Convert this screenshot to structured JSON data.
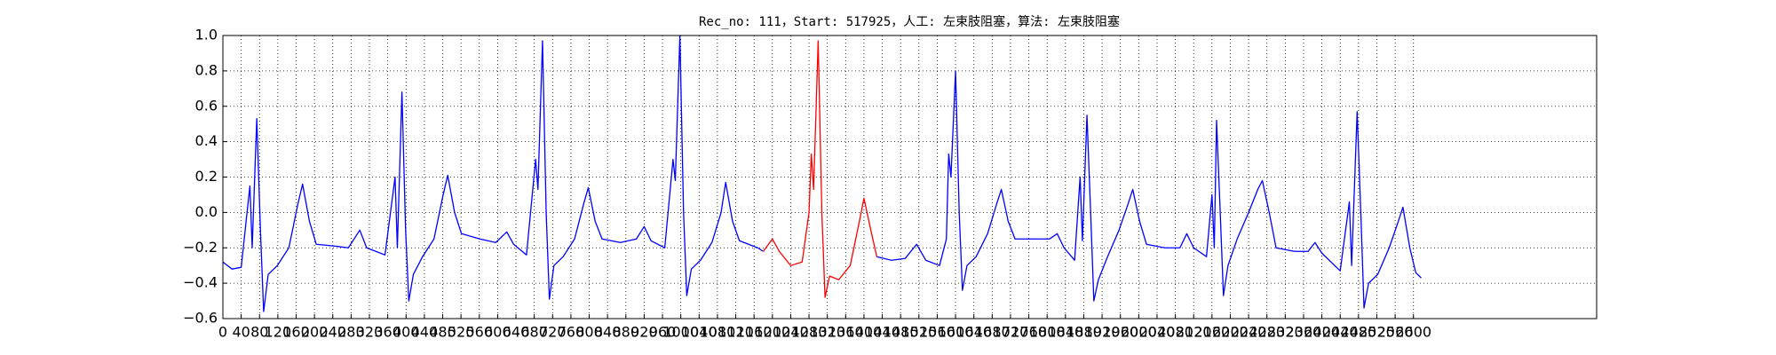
{
  "chart_data": {
    "type": "line",
    "title": "Rec_no: 111，Start: 517925，人工: 左束肢阻塞，算法: 左束肢阻塞",
    "xlim": [
      0,
      3000
    ],
    "ylim": [
      -0.6,
      1.0
    ],
    "xticks": [
      0,
      40,
      80,
      120,
      160,
      200,
      240,
      280,
      320,
      360,
      400,
      440,
      480,
      520,
      560,
      600,
      640,
      680,
      720,
      760,
      800,
      840,
      880,
      920,
      960,
      1000,
      1040,
      1080,
      1120,
      1160,
      1200,
      1240,
      1280,
      1320,
      1360,
      1400,
      1440,
      1480,
      1520,
      1560,
      1600,
      1640,
      1680,
      1720,
      1760,
      1800,
      1840,
      1880,
      1920,
      1960,
      2000,
      2040,
      2080,
      2120,
      2160,
      2200,
      2240,
      2280,
      2320,
      2360,
      2400,
      2440,
      2480,
      2520,
      2560,
      2600
    ],
    "yticks": [
      {
        "value": -0.6,
        "label": "−0.6"
      },
      {
        "value": -0.4,
        "label": "−0.4"
      },
      {
        "value": -0.2,
        "label": "−0.2"
      },
      {
        "value": 0,
        "label": "0.0"
      },
      0.2,
      0.4,
      0.6,
      0.8,
      {
        "value": 1,
        "label": "1.0"
      }
    ],
    "grid": true,
    "series": [
      {
        "color": "#0000ff",
        "x": [
          0,
          20,
          40,
          59,
          64,
          74,
          82,
          89,
          99,
          119,
          144,
          164,
          174,
          189,
          204,
          244,
          274,
          299,
          314,
          354,
          376,
          381,
          391,
          399,
          406,
          416,
          436,
          461,
          481,
          491,
          506,
          521,
          561,
          596,
          620,
          635,
          663,
          683,
          688,
          698,
          706,
          713,
          723,
          743,
          768,
          788,
          798,
          813,
          828,
          868,
          903,
          920,
          935,
          965,
          983,
          988,
          998,
          1006,
          1013,
          1023,
          1043,
          1068,
          1088,
          1098,
          1113,
          1128,
          1168,
          1180
        ],
        "values": [
          -0.28,
          -0.32,
          -0.31,
          0.15,
          -0.2,
          0.53,
          -0.1,
          -0.56,
          -0.35,
          -0.3,
          -0.2,
          0.05,
          0.16,
          -0.05,
          -0.18,
          -0.19,
          -0.2,
          -0.1,
          -0.2,
          -0.24,
          0.2,
          -0.2,
          0.68,
          -0.1,
          -0.5,
          -0.35,
          -0.25,
          -0.15,
          0.1,
          0.21,
          0.0,
          -0.12,
          -0.15,
          -0.17,
          -0.11,
          -0.18,
          -0.24,
          0.3,
          0.13,
          0.97,
          0.0,
          -0.49,
          -0.3,
          -0.25,
          -0.15,
          0.05,
          0.14,
          -0.05,
          -0.15,
          -0.17,
          -0.15,
          -0.08,
          -0.16,
          -0.2,
          0.3,
          0.18,
          1.0,
          0.0,
          -0.47,
          -0.32,
          -0.27,
          -0.17,
          0.0,
          0.17,
          -0.05,
          -0.16,
          -0.2,
          -0.22
        ]
      },
      {
        "color": "#ff0000",
        "x": [
          1180,
          1200,
          1215,
          1240,
          1265,
          1280,
          1285,
          1290,
          1300,
          1308,
          1315,
          1325,
          1345,
          1370,
          1390,
          1400,
          1415,
          1428
        ],
        "values": [
          -0.22,
          -0.15,
          -0.22,
          -0.3,
          -0.28,
          0.0,
          0.33,
          0.13,
          0.97,
          0.0,
          -0.48,
          -0.36,
          -0.38,
          -0.3,
          -0.05,
          0.08,
          -0.1,
          -0.25
        ]
      },
      {
        "color": "#0000ff",
        "x": [
          1428,
          1460,
          1490,
          1515,
          1535,
          1565,
          1580,
          1585,
          1590,
          1600,
          1608,
          1615,
          1625,
          1645,
          1670,
          1690,
          1700,
          1715,
          1730,
          1770,
          1805,
          1822,
          1837,
          1860,
          1872,
          1877,
          1887,
          1895,
          1902,
          1912,
          1932,
          1957,
          1977,
          1987,
          2002,
          2017,
          2057,
          2090,
          2105,
          2120,
          2148,
          2160,
          2165,
          2170,
          2178,
          2185,
          2195,
          2215,
          2240,
          2260,
          2270,
          2285,
          2300,
          2340,
          2370,
          2385,
          2400,
          2440,
          2460,
          2465,
          2477,
          2485,
          2492,
          2502,
          2522,
          2547,
          2567,
          2577,
          2592,
          2605,
          2617
        ],
        "values": [
          -0.25,
          -0.27,
          -0.26,
          -0.18,
          -0.27,
          -0.3,
          -0.15,
          0.33,
          0.2,
          0.8,
          0.0,
          -0.44,
          -0.3,
          -0.25,
          -0.12,
          0.05,
          0.13,
          -0.05,
          -0.15,
          -0.15,
          -0.15,
          -0.12,
          -0.2,
          -0.27,
          0.2,
          -0.16,
          0.55,
          0.0,
          -0.5,
          -0.38,
          -0.25,
          -0.1,
          0.05,
          0.13,
          -0.05,
          -0.18,
          -0.2,
          -0.2,
          -0.12,
          -0.2,
          -0.25,
          0.1,
          -0.2,
          0.52,
          0.0,
          -0.47,
          -0.3,
          -0.15,
          0.0,
          0.13,
          0.18,
          0.0,
          -0.2,
          -0.22,
          -0.22,
          -0.17,
          -0.23,
          -0.33,
          0.06,
          -0.3,
          0.57,
          0.0,
          -0.54,
          -0.4,
          -0.35,
          -0.2,
          -0.05,
          0.03,
          -0.2,
          -0.34,
          -0.37
        ]
      }
    ]
  }
}
